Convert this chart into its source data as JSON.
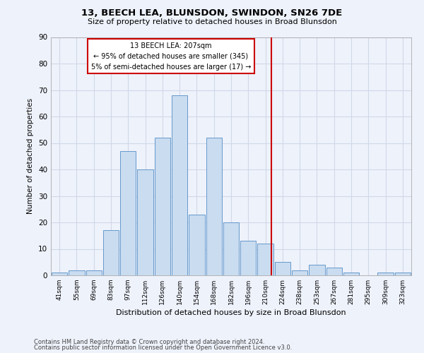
{
  "title": "13, BEECH LEA, BLUNSDON, SWINDON, SN26 7DE",
  "subtitle": "Size of property relative to detached houses in Broad Blunsdon",
  "xlabel": "Distribution of detached houses by size in Broad Blunsdon",
  "ylabel": "Number of detached properties",
  "footer1": "Contains HM Land Registry data © Crown copyright and database right 2024.",
  "footer2": "Contains public sector information licensed under the Open Government Licence v3.0.",
  "categories": [
    "41sqm",
    "55sqm",
    "69sqm",
    "83sqm",
    "97sqm",
    "112sqm",
    "126sqm",
    "140sqm",
    "154sqm",
    "168sqm",
    "182sqm",
    "196sqm",
    "210sqm",
    "224sqm",
    "238sqm",
    "253sqm",
    "267sqm",
    "281sqm",
    "295sqm",
    "309sqm",
    "323sqm"
  ],
  "values": [
    1,
    2,
    2,
    17,
    47,
    40,
    52,
    68,
    23,
    52,
    20,
    13,
    12,
    5,
    2,
    4,
    3,
    1,
    0,
    1,
    1
  ],
  "bar_color": "#c9dcf0",
  "bar_edge_color": "#6699cc",
  "background_color": "#eef2fb",
  "grid_color": "#d0d8e8",
  "vline_color": "#cc0000",
  "annotation_title": "13 BEECH LEA: 207sqm",
  "annotation_line1": "← 95% of detached houses are smaller (345)",
  "annotation_line2": "5% of semi-detached houses are larger (17) →",
  "annotation_color": "#cc0000",
  "ylim": [
    0,
    90
  ],
  "yticks": [
    0,
    10,
    20,
    30,
    40,
    50,
    60,
    70,
    80,
    90
  ]
}
